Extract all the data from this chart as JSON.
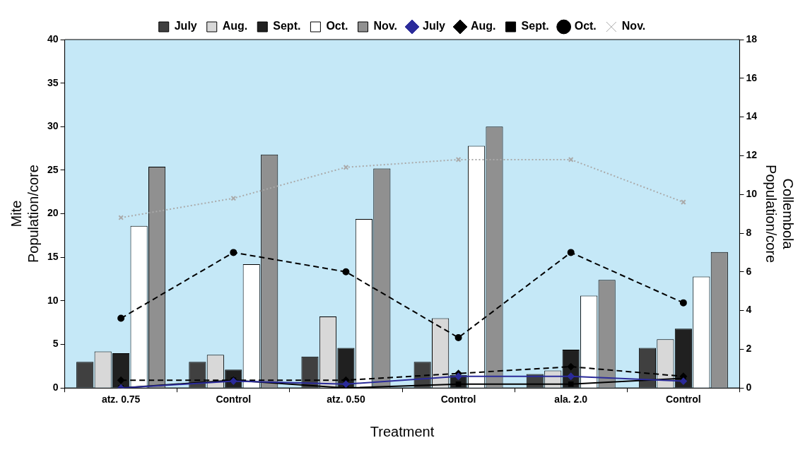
{
  "chart_data": {
    "type": "bar",
    "xlabel": "Treatment",
    "ylabel": "Mite Population/core",
    "y2label": "Collembola Population/core",
    "categories": [
      "atz. 0.75",
      "Control",
      "atz. 0.50",
      "Control",
      "ala. 2.0",
      "Control"
    ],
    "ylim": [
      0,
      40
    ],
    "yticks": [
      0,
      5,
      10,
      15,
      20,
      25,
      30,
      35,
      40
    ],
    "y2lim": [
      0,
      18
    ],
    "y2ticks": [
      0,
      2,
      4,
      6,
      8,
      10,
      12,
      14,
      16,
      18
    ],
    "grid": false,
    "legend": "top",
    "series": [
      {
        "name": "July",
        "color": "#404040",
        "values": [
          3.0,
          3.0,
          3.6,
          3.0,
          1.6,
          4.6
        ]
      },
      {
        "name": "Aug.",
        "color": "#d8d8d8",
        "values": [
          4.2,
          3.8,
          8.2,
          8.0,
          2.0,
          5.6
        ]
      },
      {
        "name": "Sept.",
        "color": "#202020",
        "values": [
          4.0,
          2.1,
          4.6,
          1.5,
          4.4,
          6.8
        ]
      },
      {
        "name": "Oct.",
        "color": "#ffffff",
        "values": [
          18.6,
          14.2,
          19.4,
          27.8,
          10.6,
          12.8
        ]
      },
      {
        "name": "Nov.",
        "color": "#909090",
        "values": [
          25.4,
          26.8,
          25.2,
          30.0,
          12.4,
          15.6
        ]
      },
      {
        "name": "July",
        "type": "line",
        "axis": "y2",
        "color": "#2b2b9a",
        "marker": "diamond",
        "line_style": "solid",
        "values": [
          0.0,
          0.35,
          0.2,
          0.6,
          0.6,
          0.35
        ]
      },
      {
        "name": "Aug.",
        "type": "line",
        "axis": "y2",
        "color": "#000000",
        "marker": "diamond",
        "line_style": "dashed",
        "values": [
          0.4,
          0.4,
          0.4,
          0.75,
          1.1,
          0.6
        ]
      },
      {
        "name": "Sept.",
        "type": "line",
        "axis": "y2",
        "color": "#000000",
        "marker": "square",
        "line_style": "solid",
        "values": [
          0.0,
          0.4,
          0.0,
          0.2,
          0.2,
          0.5
        ]
      },
      {
        "name": "Oct.",
        "type": "line",
        "axis": "y2",
        "color": "#000000",
        "marker": "circle",
        "line_style": "dashed",
        "values": [
          3.6,
          7.0,
          6.0,
          2.6,
          7.0,
          4.4
        ]
      },
      {
        "name": "Nov.",
        "type": "line",
        "axis": "y2",
        "color": "#aaaaaa",
        "marker": "cross",
        "line_style": "dotted",
        "values": [
          8.8,
          9.8,
          11.4,
          11.8,
          11.8,
          9.6
        ]
      }
    ]
  }
}
